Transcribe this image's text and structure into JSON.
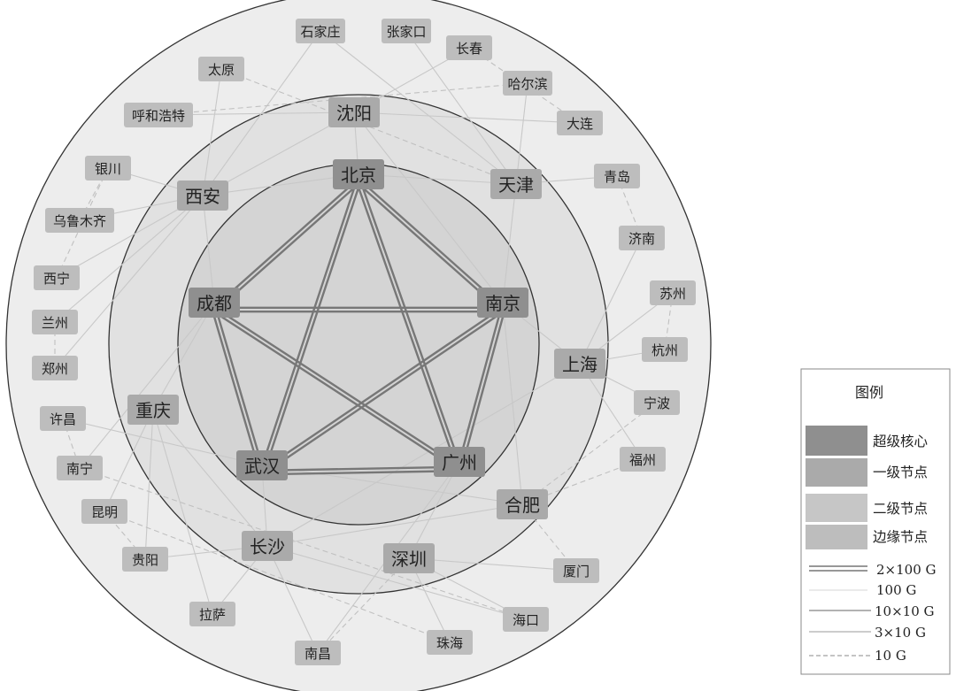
{
  "colors": {
    "outer_ring": "#ededed",
    "middle_ring": "#e1e1e1",
    "inner_ring": "#d4d4d4",
    "ring_stroke": "#333333",
    "super_core": "#8f8f8f",
    "tier1": "#aaaaaa",
    "tier2": "#c6c6c6",
    "edge_node": "#bdbdbd",
    "link_double": "#777777",
    "link_light": "#c8c8c8",
    "link_dashed": "#c0c0c0"
  },
  "rings": {
    "inner_label": "",
    "middle_label": "",
    "outer_label": ""
  },
  "nodes": {
    "super_core": [
      {
        "id": "beijing",
        "label": "北京"
      },
      {
        "id": "nanjing",
        "label": "南京"
      },
      {
        "id": "guangzhou",
        "label": "广州"
      },
      {
        "id": "wuhan",
        "label": "武汉"
      },
      {
        "id": "chengdu",
        "label": "成都"
      }
    ],
    "tier1": [
      {
        "id": "shenyang",
        "label": "沈阳"
      },
      {
        "id": "tianjin",
        "label": "天津"
      },
      {
        "id": "xian",
        "label": "西安"
      },
      {
        "id": "shanghai",
        "label": "上海"
      },
      {
        "id": "chongqing",
        "label": "重庆"
      },
      {
        "id": "hefei",
        "label": "合肥"
      },
      {
        "id": "changsha",
        "label": "长沙"
      },
      {
        "id": "shenzhen",
        "label": "深圳"
      }
    ],
    "edge": [
      {
        "id": "shijiazhuang",
        "label": "石家庄"
      },
      {
        "id": "zhangjiakou",
        "label": "张家口"
      },
      {
        "id": "changchun",
        "label": "长春"
      },
      {
        "id": "haerbin",
        "label": "哈尔滨"
      },
      {
        "id": "taiyuan",
        "label": "太原"
      },
      {
        "id": "huhehaote",
        "label": "呼和浩特"
      },
      {
        "id": "dalian",
        "label": "大连"
      },
      {
        "id": "yinchuan",
        "label": "银川"
      },
      {
        "id": "qingdao",
        "label": "青岛"
      },
      {
        "id": "wulumuqi",
        "label": "乌鲁木齐"
      },
      {
        "id": "jinan",
        "label": "济南"
      },
      {
        "id": "xining",
        "label": "西宁"
      },
      {
        "id": "suzhou",
        "label": "苏州"
      },
      {
        "id": "lanzhou",
        "label": "兰州"
      },
      {
        "id": "hangzhou",
        "label": "杭州"
      },
      {
        "id": "zhengzhou",
        "label": "郑州"
      },
      {
        "id": "ningbo",
        "label": "宁波"
      },
      {
        "id": "xuchang",
        "label": "许昌"
      },
      {
        "id": "fuzhou",
        "label": "福州"
      },
      {
        "id": "nanning",
        "label": "南宁"
      },
      {
        "id": "kunming",
        "label": "昆明"
      },
      {
        "id": "guiyang",
        "label": "贵阳"
      },
      {
        "id": "xiamen",
        "label": "厦门"
      },
      {
        "id": "lasa",
        "label": "拉萨"
      },
      {
        "id": "haikou",
        "label": "海口"
      },
      {
        "id": "zhuhai",
        "label": "珠海"
      },
      {
        "id": "nanchang",
        "label": "南昌"
      }
    ]
  },
  "links": {
    "double": [
      [
        "beijing",
        "nanjing"
      ],
      [
        "beijing",
        "guangzhou"
      ],
      [
        "beijing",
        "wuhan"
      ],
      [
        "beijing",
        "chengdu"
      ],
      [
        "nanjing",
        "guangzhou"
      ],
      [
        "nanjing",
        "wuhan"
      ],
      [
        "nanjing",
        "chengdu"
      ],
      [
        "guangzhou",
        "wuhan"
      ],
      [
        "guangzhou",
        "chengdu"
      ],
      [
        "wuhan",
        "chengdu"
      ]
    ],
    "light": [
      [
        "beijing",
        "shenyang"
      ],
      [
        "beijing",
        "tianjin"
      ],
      [
        "beijing",
        "xian"
      ],
      [
        "shenyang",
        "nanjing"
      ],
      [
        "tianjin",
        "nanjing"
      ],
      [
        "tianjin",
        "haerbin"
      ],
      [
        "tianjin",
        "qingdao"
      ],
      [
        "tianjin",
        "shijiazhuang"
      ],
      [
        "shenyang",
        "changchun"
      ],
      [
        "shenyang",
        "dalian"
      ],
      [
        "shenyang",
        "huhehaote"
      ],
      [
        "shenyang",
        "xian"
      ],
      [
        "nanjing",
        "shanghai"
      ],
      [
        "nanjing",
        "hefei"
      ],
      [
        "shanghai",
        "suzhou"
      ],
      [
        "shanghai",
        "hangzhou"
      ],
      [
        "shanghai",
        "ningbo"
      ],
      [
        "shanghai",
        "fuzhou"
      ],
      [
        "shanghai",
        "jinan"
      ],
      [
        "shanghai",
        "changsha"
      ],
      [
        "xian",
        "chengdu"
      ],
      [
        "xian",
        "wulumuqi"
      ],
      [
        "xian",
        "xining"
      ],
      [
        "xian",
        "lanzhou"
      ],
      [
        "xian",
        "zhengzhou"
      ],
      [
        "xian",
        "taiyuan"
      ],
      [
        "xian",
        "yinchuan"
      ],
      [
        "chengdu",
        "chongqing"
      ],
      [
        "chengdu",
        "nanning"
      ],
      [
        "chongqing",
        "kunming"
      ],
      [
        "chongqing",
        "guiyang"
      ],
      [
        "chongqing",
        "changsha"
      ],
      [
        "chongqing",
        "lasa"
      ],
      [
        "wuhan",
        "changsha"
      ],
      [
        "wuhan",
        "hefei"
      ],
      [
        "wuhan",
        "xuchang"
      ],
      [
        "changsha",
        "guiyang"
      ],
      [
        "changsha",
        "nanchang"
      ],
      [
        "changsha",
        "haikou"
      ],
      [
        "changsha",
        "lasa"
      ],
      [
        "guangzhou",
        "shenzhen"
      ],
      [
        "shenzhen",
        "xiamen"
      ],
      [
        "shenzhen",
        "zhuhai"
      ],
      [
        "shenzhen",
        "haikou"
      ],
      [
        "guangzhou",
        "nanchang"
      ],
      [
        "hefei",
        "changsha"
      ],
      [
        "zhangjiakou",
        "tianjin"
      ],
      [
        "shijiazhuang",
        "xian"
      ]
    ],
    "dashed": [
      [
        "taiyuan",
        "tianjin"
      ],
      [
        "huhehaote",
        "haerbin"
      ],
      [
        "yinchuan",
        "wulumuqi"
      ],
      [
        "lanzhou",
        "zhengzhou"
      ],
      [
        "xining",
        "yinchuan"
      ],
      [
        "xuchang",
        "nanning"
      ],
      [
        "kunming",
        "guiyang"
      ],
      [
        "hefei",
        "xiamen"
      ],
      [
        "hefei",
        "fuzhou"
      ],
      [
        "ningbo",
        "hefei"
      ],
      [
        "qingdao",
        "jinan"
      ],
      [
        "suzhou",
        "hangzhou"
      ],
      [
        "nanning",
        "haikou"
      ],
      [
        "kunming",
        "zhuhai"
      ],
      [
        "changchun",
        "dalian"
      ],
      [
        "nanchang",
        "shenzhen"
      ]
    ]
  },
  "legend": {
    "title": "图例",
    "node_types": [
      {
        "label": "超级核心",
        "color": "#8f8f8f"
      },
      {
        "label": "一级节点",
        "color": "#aaaaaa"
      },
      {
        "label": "二级节点",
        "color": "#c6c6c6"
      },
      {
        "label": "边缘节点",
        "color": "#bdbdbd"
      }
    ],
    "link_types": [
      {
        "label": "2×100 G",
        "style": "double"
      },
      {
        "label": "100 G",
        "style": "thin-light"
      },
      {
        "label": "10×10 G",
        "style": "thin-dark"
      },
      {
        "label": "3×10 G",
        "style": "thin-mid"
      },
      {
        "label": "10 G",
        "style": "dashed"
      }
    ]
  }
}
